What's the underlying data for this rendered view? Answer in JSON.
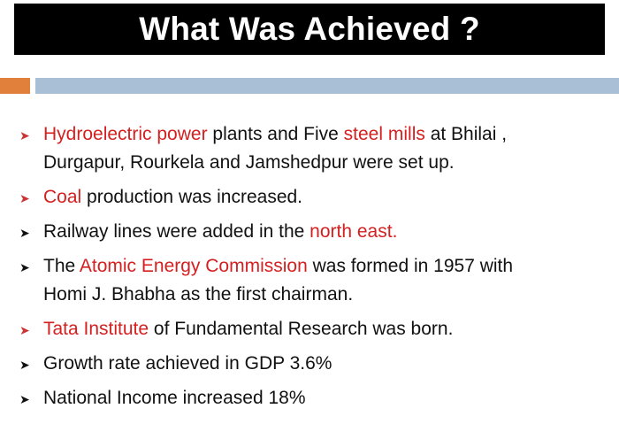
{
  "title": "What Was Achieved ?",
  "colors": {
    "highlight": "#d42020",
    "title_bg": "#000000",
    "accent_orange": "#e0803a",
    "accent_blue": "#a9bfd6"
  },
  "marker_icon": "arrowhead-bullet-icon",
  "bullets": [
    {
      "parts": [
        "Hydroelectric power",
        " plants and Five ",
        "steel mills",
        " at Bhilai ,"
      ],
      "line2": "Durgapur, Rourkela  and Jamshedpur were set up."
    },
    {
      "parts": [
        "Coal",
        " production was increased."
      ]
    },
    {
      "parts": [
        "Railway lines were added in the ",
        "north east."
      ]
    },
    {
      "parts": [
        "The ",
        "Atomic Energy Commission",
        " was formed in 1957 with"
      ],
      "line2": "Homi J. Bhabha as the first chairman."
    },
    {
      "parts": [
        "Tata Institute",
        " of Fundamental Research was born."
      ]
    },
    {
      "parts": [
        "Growth rate achieved in GDP 3.6%"
      ]
    },
    {
      "parts": [
        "National Income increased 18%"
      ]
    }
  ]
}
